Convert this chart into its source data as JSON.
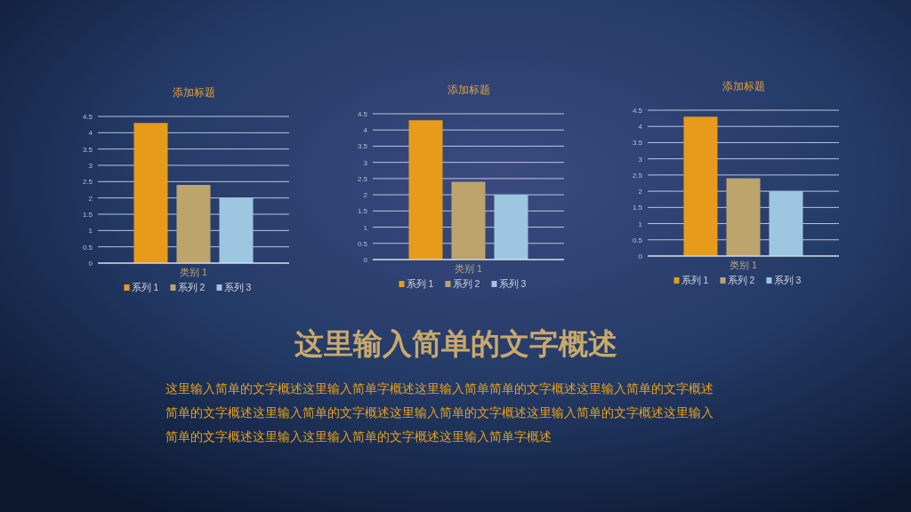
{
  "chart_data": [
    {
      "type": "bar",
      "title": "添加标题",
      "categories": [
        "类别 1"
      ],
      "ylim": [
        0,
        4.5
      ],
      "yticks": [
        0,
        0.5,
        1,
        1.5,
        2,
        2.5,
        3,
        3.5,
        4,
        4.5
      ],
      "grid": "y",
      "legend": "bottom",
      "series": [
        {
          "name": "系列 1",
          "color": "#e69c1a",
          "values": [
            4.3
          ]
        },
        {
          "name": "系列 2",
          "color": "#bda36c",
          "values": [
            2.4
          ]
        },
        {
          "name": "系列 3",
          "color": "#9dc6e0",
          "values": [
            2.0
          ]
        }
      ]
    },
    {
      "type": "bar",
      "title": "添加标题",
      "categories": [
        "类别 1"
      ],
      "ylim": [
        0,
        4.5
      ],
      "yticks": [
        0,
        0.5,
        1,
        1.5,
        2,
        2.5,
        3,
        3.5,
        4,
        4.5
      ],
      "grid": "y",
      "legend": "bottom",
      "series": [
        {
          "name": "系列 1",
          "color": "#e69c1a",
          "values": [
            4.3
          ]
        },
        {
          "name": "系列 2",
          "color": "#bda36c",
          "values": [
            2.4
          ]
        },
        {
          "name": "系列 3",
          "color": "#9dc6e0",
          "values": [
            2.0
          ]
        }
      ]
    },
    {
      "type": "bar",
      "title": "添加标题",
      "categories": [
        "类别 1"
      ],
      "ylim": [
        0,
        4.5
      ],
      "yticks": [
        0,
        0.5,
        1,
        1.5,
        2,
        2.5,
        3,
        3.5,
        4,
        4.5
      ],
      "grid": "y",
      "legend": "bottom",
      "series": [
        {
          "name": "系列 1",
          "color": "#e69c1a",
          "values": [
            4.3
          ]
        },
        {
          "name": "系列 2",
          "color": "#bda36c",
          "values": [
            2.4
          ]
        },
        {
          "name": "系列 3",
          "color": "#9dc6e0",
          "values": [
            2.0
          ]
        }
      ]
    },
    {
      "type": "other",
      "title": "这里输入简单的文字概述",
      "annotations": [
        "这里输入简单的文字概述这里输入简单字概述这里输入简单简单的文字概述这里输入简单的文字概述",
        "简单的文字概述这里输入简单的文字概述这里输入简单的文字概述这里输入简单的文字概述这里输入",
        "简单的文字概述这里输入这里输入简单的文字概述这里输入简单字概述"
      ]
    }
  ]
}
